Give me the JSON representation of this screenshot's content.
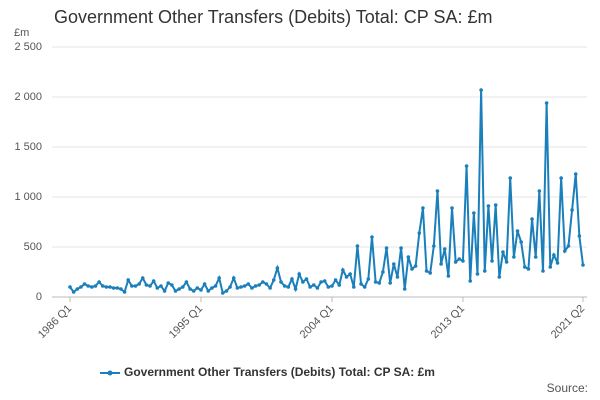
{
  "chart_data": {
    "type": "line",
    "title": "Government Other Transfers (Debits) Total: CP SA: £m",
    "y_label": "£m",
    "source": "Source:",
    "categories": [
      "1986 Q1",
      null,
      null,
      null,
      null,
      null,
      null,
      null,
      null,
      null,
      null,
      null,
      null,
      null,
      null,
      null,
      null,
      null,
      null,
      null,
      null,
      null,
      null,
      null,
      null,
      null,
      null,
      null,
      null,
      null,
      null,
      null,
      null,
      null,
      null,
      null,
      "1995 Q1",
      null,
      null,
      null,
      null,
      null,
      null,
      null,
      null,
      null,
      null,
      null,
      null,
      null,
      null,
      null,
      null,
      null,
      null,
      null,
      null,
      null,
      null,
      null,
      null,
      null,
      null,
      null,
      null,
      null,
      null,
      null,
      null,
      null,
      null,
      null,
      "2004 Q1",
      null,
      null,
      null,
      null,
      null,
      null,
      null,
      null,
      null,
      null,
      null,
      null,
      null,
      null,
      null,
      null,
      null,
      null,
      null,
      null,
      null,
      null,
      null,
      null,
      null,
      null,
      null,
      null,
      null,
      null,
      null,
      null,
      null,
      null,
      null,
      "2013 Q1",
      null,
      null,
      null,
      null,
      null,
      null,
      null,
      null,
      null,
      null,
      null,
      null,
      null,
      null,
      null,
      null,
      null,
      null,
      null,
      null,
      null,
      null,
      null,
      null,
      null,
      null,
      null,
      null,
      null,
      null,
      null,
      null,
      "2021 Q2"
    ],
    "series": [
      {
        "name": "Government Other Transfers (Debits) Total: CP SA: £m",
        "color": "#1a7fba",
        "values": [
          100,
          50,
          80,
          100,
          130,
          110,
          100,
          110,
          150,
          110,
          100,
          100,
          90,
          90,
          80,
          50,
          170,
          110,
          110,
          130,
          190,
          120,
          110,
          160,
          90,
          110,
          60,
          140,
          120,
          60,
          80,
          100,
          150,
          80,
          60,
          90,
          70,
          130,
          60,
          90,
          110,
          190,
          40,
          60,
          100,
          190,
          90,
          100,
          110,
          130,
          90,
          110,
          120,
          150,
          130,
          90,
          170,
          290,
          150,
          110,
          100,
          180,
          80,
          230,
          150,
          180,
          100,
          120,
          90,
          150,
          160,
          100,
          110,
          170,
          120,
          270,
          200,
          230,
          100,
          510,
          130,
          100,
          180,
          600,
          150,
          140,
          250,
          490,
          140,
          330,
          200,
          490,
          80,
          400,
          280,
          310,
          640,
          890,
          260,
          240,
          510,
          1060,
          330,
          480,
          210,
          890,
          350,
          380,
          360,
          1310,
          160,
          840,
          230,
          2070,
          260,
          910,
          360,
          920,
          200,
          450,
          350,
          1190,
          400,
          660,
          550,
          300,
          280,
          780,
          400,
          1060,
          260,
          1940,
          300,
          420,
          340,
          1190,
          460,
          510,
          870,
          1230,
          610,
          320
        ]
      }
    ],
    "ylim": [
      0,
      2500
    ],
    "yticks": [
      0,
      500,
      {
        "value": 1000,
        "label": "1 000"
      },
      {
        "value": 1500,
        "label": "1 500"
      },
      {
        "value": 2000,
        "label": "2 000"
      },
      {
        "value": 2500,
        "label": "2 500"
      }
    ],
    "grid": true
  }
}
